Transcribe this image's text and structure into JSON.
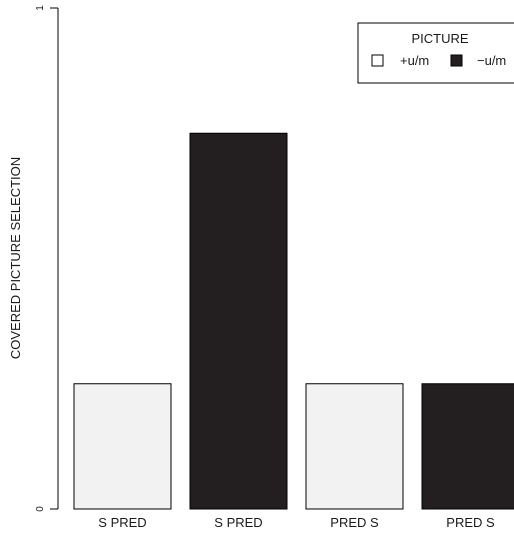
{
  "chart_data": {
    "type": "bar",
    "categories": [
      "S PRED",
      "S PRED",
      "PRED S",
      "PRED S"
    ],
    "values": [
      0.25,
      0.75,
      0.25,
      0.25
    ],
    "bar_series": [
      "+u/m",
      "−u/m",
      "+u/m",
      "−u/m"
    ],
    "series": [
      {
        "name": "+u/m",
        "color": "#f2f2f2"
      },
      {
        "name": "−u/m",
        "color": "#231f20"
      }
    ],
    "ylabel": "COVERED PICTURE SELECTION",
    "ylim": [
      0,
      1
    ],
    "yticks": [
      "0",
      "1"
    ],
    "legend": {
      "title": "PICTURE",
      "placement": "top-right"
    },
    "grid": false
  }
}
